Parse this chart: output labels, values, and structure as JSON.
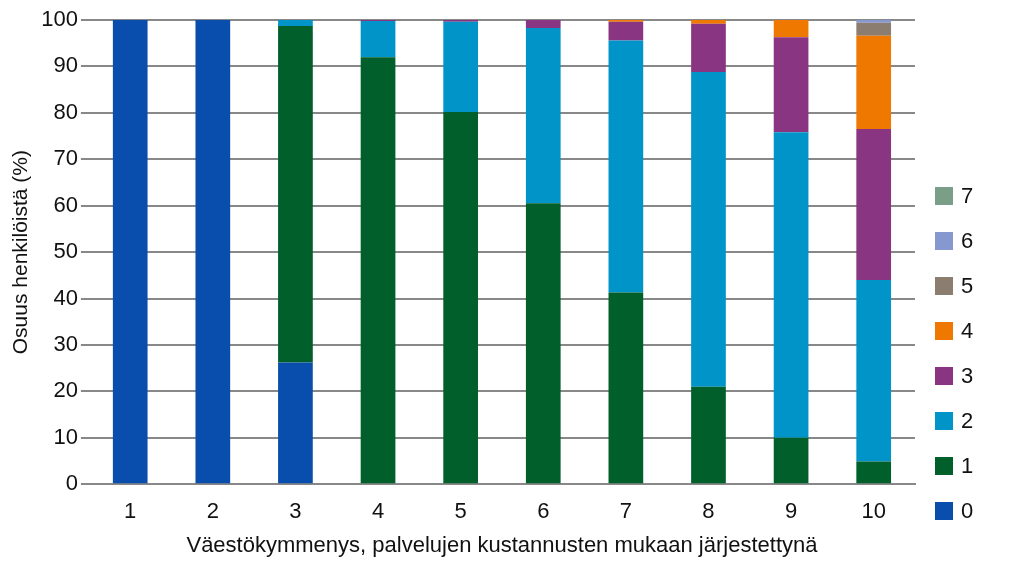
{
  "chart_data": {
    "type": "bar",
    "stacked": true,
    "xlabel": "Väestökymmenys, palvelujen kustannusten mukaan järjestettynä",
    "ylabel": "Osuus henkilöistä (%)",
    "categories": [
      "1",
      "2",
      "3",
      "4",
      "5",
      "6",
      "7",
      "8",
      "9",
      "10"
    ],
    "ylim": [
      0,
      100
    ],
    "yticks": [
      0,
      10,
      20,
      30,
      40,
      50,
      60,
      70,
      80,
      90,
      100
    ],
    "grid": "y",
    "legend": "right",
    "series": [
      {
        "name": "0",
        "color": "#0a4ead",
        "values": [
          100,
          100,
          26.2,
          0,
          0,
          0,
          0,
          0,
          0,
          0
        ]
      },
      {
        "name": "1",
        "color": "#005f2a",
        "values": [
          0,
          0,
          72.5,
          92,
          80.2,
          60.5,
          41.3,
          21,
          10,
          4.9
        ]
      },
      {
        "name": "2",
        "color": "#0094c8",
        "values": [
          0,
          0,
          1.3,
          7.8,
          19.4,
          37.8,
          54.3,
          67.8,
          65.8,
          39.1
        ]
      },
      {
        "name": "3",
        "color": "#8a3581",
        "values": [
          0,
          0,
          0,
          0.2,
          0.4,
          1.7,
          4,
          10.4,
          20.5,
          32.5
        ]
      },
      {
        "name": "4",
        "color": "#ee7800",
        "values": [
          0,
          0,
          0,
          0,
          0,
          0,
          0.4,
          0.8,
          3.7,
          20.1
        ]
      },
      {
        "name": "5",
        "color": "#8b7e71",
        "values": [
          0,
          0,
          0,
          0,
          0,
          0,
          0,
          0,
          0,
          2.8
        ]
      },
      {
        "name": "6",
        "color": "#8798d0",
        "values": [
          0,
          0,
          0,
          0,
          0,
          0,
          0,
          0,
          0,
          0.6
        ]
      },
      {
        "name": "7",
        "color": "#7a9e87",
        "values": [
          0,
          0,
          0,
          0,
          0,
          0,
          0,
          0,
          0,
          0
        ]
      }
    ]
  }
}
